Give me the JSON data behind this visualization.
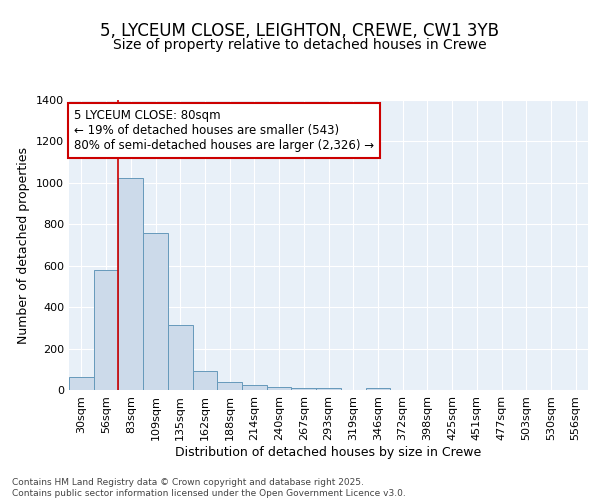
{
  "title_line1": "5, LYCEUM CLOSE, LEIGHTON, CREWE, CW1 3YB",
  "title_line2": "Size of property relative to detached houses in Crewe",
  "xlabel": "Distribution of detached houses by size in Crewe",
  "ylabel": "Number of detached properties",
  "categories": [
    "30sqm",
    "56sqm",
    "83sqm",
    "109sqm",
    "135sqm",
    "162sqm",
    "188sqm",
    "214sqm",
    "240sqm",
    "267sqm",
    "293sqm",
    "319sqm",
    "346sqm",
    "372sqm",
    "398sqm",
    "425sqm",
    "451sqm",
    "477sqm",
    "503sqm",
    "530sqm",
    "556sqm"
  ],
  "values": [
    65,
    580,
    1025,
    760,
    315,
    90,
    40,
    22,
    15,
    12,
    12,
    0,
    12,
    0,
    0,
    0,
    0,
    0,
    0,
    0,
    0
  ],
  "bar_color": "#ccdaea",
  "bar_edge_color": "#6699bb",
  "vline_x": 2.0,
  "vline_color": "#cc0000",
  "annotation_text": "5 LYCEUM CLOSE: 80sqm\n← 19% of detached houses are smaller (543)\n80% of semi-detached houses are larger (2,326) →",
  "annotation_box_color": "#ffffff",
  "annotation_box_edge": "#cc0000",
  "ylim": [
    0,
    1400
  ],
  "yticks": [
    0,
    200,
    400,
    600,
    800,
    1000,
    1200,
    1400
  ],
  "bg_color": "#ffffff",
  "plot_bg_color": "#e8f0f8",
  "grid_color": "#ffffff",
  "footer_text": "Contains HM Land Registry data © Crown copyright and database right 2025.\nContains public sector information licensed under the Open Government Licence v3.0.",
  "title_fontsize": 12,
  "subtitle_fontsize": 10,
  "tick_fontsize": 8,
  "ylabel_fontsize": 9,
  "xlabel_fontsize": 9,
  "annotation_fontsize": 8.5
}
